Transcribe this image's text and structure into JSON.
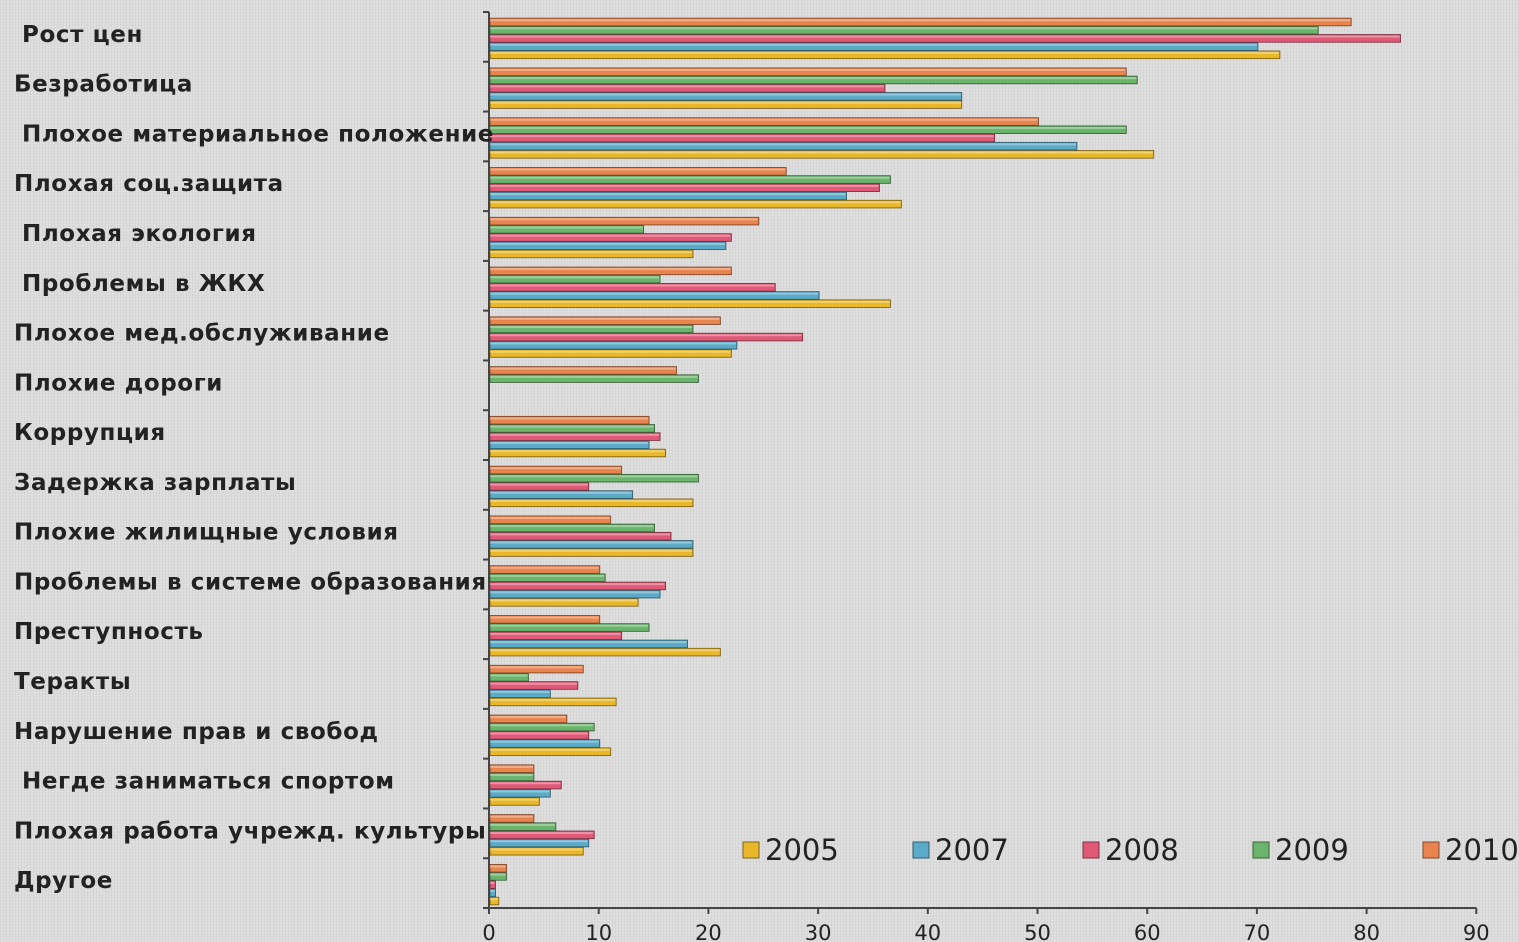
{
  "chart_data": {
    "type": "bar",
    "orientation": "horizontal",
    "title": "",
    "xlabel": "",
    "ylabel": "",
    "xlim": [
      0,
      90
    ],
    "x_ticks": [
      0,
      10,
      20,
      30,
      40,
      50,
      60,
      70,
      80,
      90
    ],
    "grid": false,
    "legend_position": "bottom-right",
    "categories": [
      "Рост цен",
      "Безработица",
      "Плохое материальное положение",
      "Плохая соц.защита",
      "Плохая экология",
      "Проблемы в ЖКХ",
      "Плохое мед.обслуживание",
      "Плохие дороги",
      "Коррупция",
      "Задержка зарплаты",
      "Плохие жилищные условия",
      "Проблемы в системе образования",
      "Преступность",
      "Теракты",
      "Нарушение прав и свобод",
      "Негде заниматься спортом",
      "Плохая работа учрежд. культуры",
      "Другое"
    ],
    "series": [
      {
        "name": "2005",
        "color": "#e8b82a",
        "values": [
          72,
          43,
          60.5,
          37.5,
          18.5,
          36.5,
          22,
          null,
          16,
          18.5,
          18.5,
          13.5,
          21,
          11.5,
          11,
          4.5,
          8.5,
          0.8
        ]
      },
      {
        "name": "2007",
        "color": "#5aaac8",
        "values": [
          70,
          43,
          53.5,
          32.5,
          21.5,
          30,
          22.5,
          null,
          14.5,
          13,
          18.5,
          15.5,
          18,
          5.5,
          10,
          5.5,
          9,
          0.5
        ]
      },
      {
        "name": "2008",
        "color": "#e05a78",
        "values": [
          83,
          36,
          46,
          35.5,
          22,
          26,
          28.5,
          null,
          15.5,
          9,
          16.5,
          16,
          12,
          8,
          9,
          6.5,
          9.5,
          0.5
        ]
      },
      {
        "name": "2009",
        "color": "#6bb46b",
        "values": [
          75.5,
          59,
          58,
          36.5,
          14,
          15.5,
          18.5,
          19,
          15,
          19,
          15,
          10.5,
          14.5,
          3.5,
          9.5,
          4,
          6,
          1.5
        ]
      },
      {
        "name": "2010",
        "color": "#e8844e",
        "values": [
          78.5,
          58,
          50,
          27,
          24.5,
          22,
          21,
          17,
          14.5,
          12,
          11,
          10,
          10,
          8.5,
          7,
          4,
          4,
          1.5
        ]
      }
    ]
  }
}
